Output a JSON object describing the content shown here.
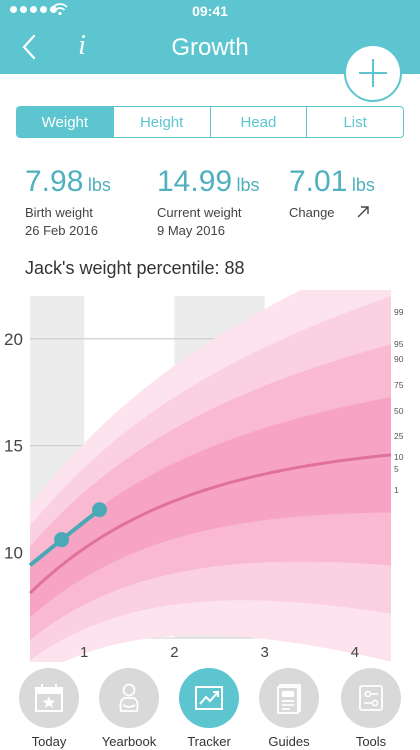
{
  "status_bar": {
    "time": "09:41"
  },
  "nav": {
    "title": "Growth",
    "info_label": "i"
  },
  "segments": [
    {
      "label": "Weight",
      "active": true
    },
    {
      "label": "Height",
      "active": false
    },
    {
      "label": "Head",
      "active": false
    },
    {
      "label": "List",
      "active": false
    }
  ],
  "stats": [
    {
      "value": "7.98",
      "unit": "lbs",
      "label": "Birth weight",
      "date": "26 Feb 2016"
    },
    {
      "value": "14.99",
      "unit": "lbs",
      "label": "Current weight",
      "date": "9 May 2016"
    },
    {
      "value": "7.01",
      "unit": "lbs",
      "label": "Change",
      "date": ""
    }
  ],
  "percentile_text": "Jack's weight percentile: 88",
  "chart_data": {
    "type": "line",
    "xlim": [
      0.4,
      4.4
    ],
    "ylim": [
      6,
      22
    ],
    "x_ticks": [
      "1",
      "2",
      "3",
      "4"
    ],
    "y_ticks": [
      "10",
      "15",
      "20"
    ],
    "percentile_labels": [
      "99",
      "95",
      "90",
      "75",
      "50",
      "25",
      "10",
      "5",
      "1"
    ],
    "median_curve": [
      [
        0.4,
        8.1
      ],
      [
        1,
        10.6
      ],
      [
        2,
        12.8
      ],
      [
        3,
        14.2
      ],
      [
        4.4,
        15.3
      ]
    ],
    "child_points": [
      [
        0.4,
        9.4
      ],
      [
        0.75,
        10.6
      ],
      [
        1.17,
        12.0
      ]
    ],
    "colors": {
      "accent": "#5cc5d0",
      "band_outer": "#fde3ee",
      "band_inner": "#f7a3c3",
      "median": "#e0719b"
    }
  },
  "tabs": [
    {
      "label": "Today",
      "icon": "calendar-star-icon",
      "active": false
    },
    {
      "label": "Yearbook",
      "icon": "baby-icon",
      "active": false
    },
    {
      "label": "Tracker",
      "icon": "chart-icon",
      "active": true
    },
    {
      "label": "Guides",
      "icon": "document-icon",
      "active": false
    },
    {
      "label": "Tools",
      "icon": "tools-icon",
      "active": false
    }
  ]
}
